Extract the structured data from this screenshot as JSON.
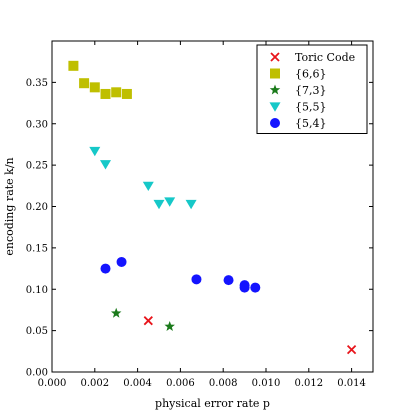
{
  "chart_data": {
    "type": "scatter",
    "xlabel": "physical error rate p",
    "ylabel": "encoding rate k/n",
    "xlim": [
      0.0,
      0.015
    ],
    "ylim": [
      0.0,
      0.4
    ],
    "xticks": [
      0.0,
      0.002,
      0.004,
      0.006,
      0.008,
      0.01,
      0.012,
      0.014
    ],
    "xtick_labels": [
      "0.000",
      "0.002",
      "0.004",
      "0.006",
      "0.008",
      "0.010",
      "0.012",
      "0.014"
    ],
    "yticks": [
      0.0,
      0.05,
      0.1,
      0.15,
      0.2,
      0.25,
      0.3,
      0.35
    ],
    "ytick_labels": [
      "0.00",
      "0.05",
      "0.10",
      "0.15",
      "0.20",
      "0.25",
      "0.30",
      "0.35"
    ],
    "grid": false,
    "legend_position": "top-right",
    "series": [
      {
        "name": "Toric Code",
        "marker": "x",
        "color": "#e8141b",
        "x": [
          0.0045,
          0.014
        ],
        "y": [
          0.062,
          0.027
        ]
      },
      {
        "name": "{6,6}",
        "marker": "square",
        "color": "#bfbf00",
        "x": [
          0.001,
          0.0015,
          0.002,
          0.0025,
          0.003,
          0.0035
        ],
        "y": [
          0.37,
          0.349,
          0.344,
          0.336,
          0.338,
          0.336
        ]
      },
      {
        "name": "{7,3}",
        "marker": "star",
        "color": "#1b7a1b",
        "x": [
          0.003,
          0.0055
        ],
        "y": [
          0.071,
          0.055
        ]
      },
      {
        "name": "{5,5}",
        "marker": "triangle-down",
        "color": "#16c8c8",
        "x": [
          0.002,
          0.0025,
          0.0045,
          0.005,
          0.0055,
          0.0065
        ],
        "y": [
          0.267,
          0.251,
          0.225,
          0.203,
          0.206,
          0.203
        ]
      },
      {
        "name": "{5,4}",
        "marker": "circle",
        "color": "#1414ff",
        "x": [
          0.0025,
          0.00325,
          0.00675,
          0.00825,
          0.009,
          0.009,
          0.0095
        ],
        "y": [
          0.125,
          0.133,
          0.112,
          0.111,
          0.105,
          0.102,
          0.102
        ]
      }
    ]
  }
}
